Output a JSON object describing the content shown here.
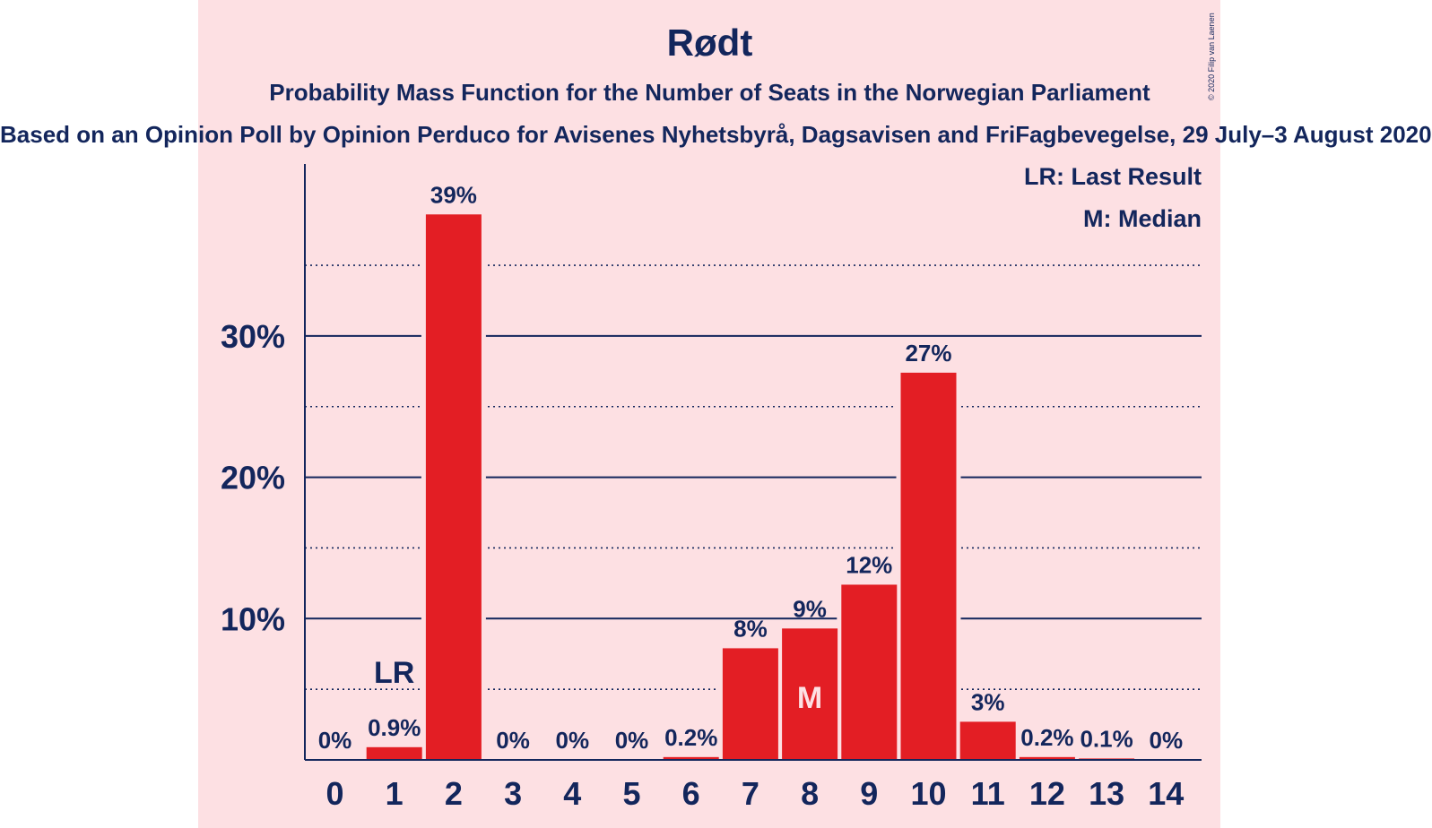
{
  "header": {
    "title": "Rødt",
    "subtitle": "Probability Mass Function for the Number of Seats in the Norwegian Parliament",
    "subtitle2": "Based on an Opinion Poll by Opinion Perduco for Avisenes Nyhetsbyrå, Dagsavisen and FriFagbevegelse, 29 July–3 August 2020"
  },
  "copyright": "© 2020 Filip van Laenen",
  "legend": {
    "last_result": "LR: Last Result",
    "median": "M: Median"
  },
  "chart_data": {
    "type": "bar",
    "categories": [
      "0",
      "1",
      "2",
      "3",
      "4",
      "5",
      "6",
      "7",
      "8",
      "9",
      "10",
      "11",
      "12",
      "13",
      "14"
    ],
    "values": [
      0,
      0.9,
      38.6,
      0,
      0,
      0,
      0.2,
      7.9,
      9.3,
      12.4,
      27.4,
      2.7,
      0.2,
      0.1,
      0
    ],
    "value_labels": [
      "0%",
      "0.9%",
      "39%",
      "0%",
      "0%",
      "0%",
      "0.2%",
      "8%",
      "9%",
      "12%",
      "27%",
      "3%",
      "0.2%",
      "0.1%",
      "0%"
    ],
    "ylim": [
      0,
      42
    ],
    "yticks": [
      10,
      20,
      30
    ],
    "ytick_labels": [
      "10%",
      "20%",
      "30%"
    ],
    "minor_gridlines": [
      5,
      15,
      25,
      35
    ],
    "grid": true,
    "legend_position": "top-right",
    "last_result_category": "1",
    "last_result_marker": "LR",
    "median_category": "8",
    "median_marker": "M",
    "colors": {
      "bar": "#e31e24",
      "text": "#13265c",
      "background": "#fde0e3"
    }
  }
}
